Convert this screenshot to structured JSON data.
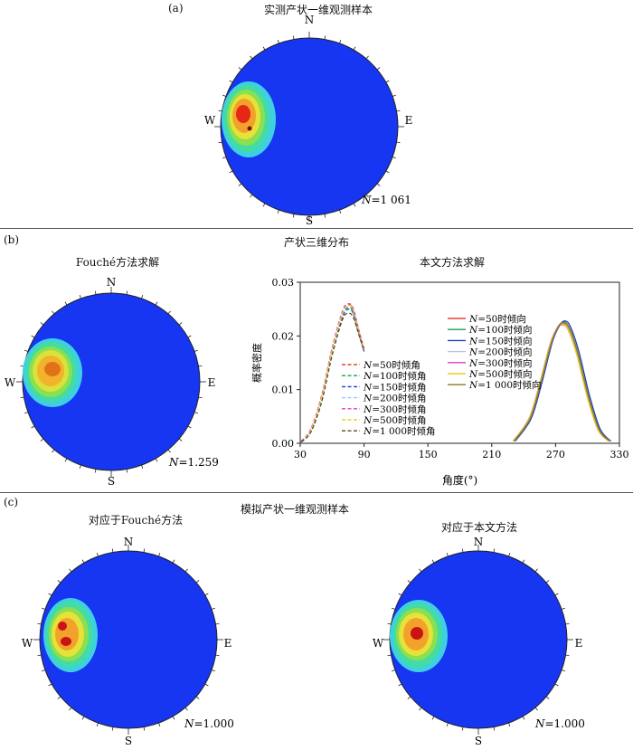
{
  "panel_a": {
    "tag": "(a)",
    "title": "实测产状一维观测样本",
    "net": {
      "north": "N",
      "south": "S",
      "west": "W",
      "east": "E",
      "n_symbol": "N",
      "n_value": "=1 061"
    }
  },
  "panel_b": {
    "tag": "(b)",
    "title": "产状三维分布",
    "left_title": "Fouché方法求解",
    "right_title": "本文方法求解",
    "net": {
      "north": "N",
      "south": "S",
      "west": "W",
      "east": "E",
      "n_symbol": "N",
      "n_value": "=1.259"
    }
  },
  "panel_c": {
    "tag": "(c)",
    "title": "模拟产状一维观测样本",
    "left_title": "对应于Fouché方法",
    "right_title": "对应于本文方法",
    "net_left": {
      "north": "N",
      "south": "S",
      "west": "W",
      "east": "E",
      "n_symbol": "N",
      "n_value": "=1.000"
    },
    "net_right": {
      "north": "N",
      "south": "S",
      "west": "W",
      "east": "E",
      "n_symbol": "N",
      "n_value": "=1.000"
    }
  },
  "chart_data": {
    "type": "line",
    "xlabel": "角度(°)",
    "ylabel": "概率密度",
    "xlim": [
      30,
      330
    ],
    "ylim": [
      0,
      0.03
    ],
    "xticks": [
      30,
      90,
      150,
      210,
      270,
      330
    ],
    "yticks": [
      0.0,
      0.01,
      0.02,
      0.03
    ],
    "ytick_labels": [
      "0.00",
      "0.01",
      "0.02",
      "0.03"
    ],
    "series": [
      {
        "name": "50时倾角",
        "n_value": "=50",
        "group": "dip",
        "dashed": true,
        "color": "#e8413a",
        "x": [
          31,
          40,
          50,
          60,
          70,
          76,
          80,
          85,
          90
        ],
        "y": [
          0.0003,
          0.0025,
          0.0085,
          0.0175,
          0.0245,
          0.0258,
          0.0248,
          0.021,
          0.0175
        ]
      },
      {
        "name": "100时倾角",
        "n_value": "=100",
        "group": "dip",
        "dashed": true,
        "color": "#16a34a",
        "x": [
          31,
          40,
          50,
          60,
          70,
          76,
          80,
          85,
          90
        ],
        "y": [
          0.0003,
          0.0023,
          0.008,
          0.017,
          0.024,
          0.0253,
          0.0243,
          0.0207,
          0.0173
        ]
      },
      {
        "name": "150时倾角",
        "n_value": "=150",
        "group": "dip",
        "dashed": true,
        "color": "#1d3fbf",
        "x": [
          31,
          40,
          50,
          60,
          70,
          76,
          80,
          85,
          90
        ],
        "y": [
          0.0002,
          0.0022,
          0.0078,
          0.0167,
          0.0237,
          0.025,
          0.0241,
          0.0205,
          0.0171
        ]
      },
      {
        "name": "200时倾角",
        "n_value": "=200",
        "group": "dip",
        "dashed": true,
        "color": "#8fcff0",
        "x": [
          31,
          40,
          50,
          60,
          70,
          76,
          80,
          85,
          90
        ],
        "y": [
          0.0003,
          0.0024,
          0.0082,
          0.0172,
          0.0242,
          0.0256,
          0.0246,
          0.0208,
          0.0174
        ]
      },
      {
        "name": "300时倾角",
        "n_value": "=300",
        "group": "dip",
        "dashed": true,
        "color": "#e03cc4",
        "x": [
          31,
          40,
          50,
          60,
          70,
          76,
          80,
          85,
          90
        ],
        "y": [
          0.0004,
          0.0027,
          0.0088,
          0.0178,
          0.0248,
          0.026,
          0.025,
          0.0212,
          0.0176
        ]
      },
      {
        "name": "500时倾角",
        "n_value": "=500",
        "group": "dip",
        "dashed": true,
        "color": "#e9d21b",
        "x": [
          31,
          40,
          50,
          60,
          70,
          76,
          80,
          85,
          90
        ],
        "y": [
          0.0003,
          0.0025,
          0.0084,
          0.0174,
          0.0244,
          0.0257,
          0.0247,
          0.0209,
          0.0175
        ]
      },
      {
        "name": "1 000时倾角",
        "n_value": "=1 000",
        "group": "dip",
        "dashed": true,
        "color": "#5a4a1f",
        "x": [
          31,
          40,
          50,
          60,
          70,
          76,
          80,
          85,
          90
        ],
        "y": [
          0.0003,
          0.0021,
          0.0076,
          0.0164,
          0.0232,
          0.0242,
          0.0234,
          0.0203,
          0.0172
        ]
      },
      {
        "name": "50时倾向",
        "n_value": "=50",
        "group": "dir",
        "dashed": false,
        "color": "#e8413a",
        "x": [
          230,
          245,
          255,
          265,
          272,
          277,
          282,
          290,
          300,
          310,
          320
        ],
        "y": [
          0.0004,
          0.0045,
          0.011,
          0.0185,
          0.0215,
          0.0221,
          0.0211,
          0.0165,
          0.0085,
          0.0025,
          0.0004
        ]
      },
      {
        "name": "100时倾向",
        "n_value": "=100",
        "group": "dir",
        "dashed": false,
        "color": "#16a34a",
        "x": [
          231,
          246,
          256,
          266,
          273,
          278,
          283,
          291,
          301,
          311,
          321
        ],
        "y": [
          0.0004,
          0.0047,
          0.0113,
          0.0188,
          0.0219,
          0.0226,
          0.0215,
          0.0168,
          0.0087,
          0.0026,
          0.0004
        ]
      },
      {
        "name": "150时倾向",
        "n_value": "=150",
        "group": "dir",
        "dashed": false,
        "color": "#1d3fbf",
        "x": [
          232,
          247,
          257,
          267,
          274,
          279,
          284,
          292,
          302,
          312,
          322
        ],
        "y": [
          0.0004,
          0.0046,
          0.0112,
          0.0189,
          0.022,
          0.0228,
          0.0217,
          0.017,
          0.0088,
          0.0026,
          0.0004
        ]
      },
      {
        "name": "200时倾向",
        "n_value": "=200",
        "group": "dir",
        "dashed": false,
        "color": "#b9c4ea",
        "x": [
          231,
          246,
          256,
          266,
          273,
          278,
          283,
          291,
          301,
          311,
          321
        ],
        "y": [
          0.0004,
          0.0046,
          0.0112,
          0.0187,
          0.0218,
          0.0224,
          0.0214,
          0.0167,
          0.0086,
          0.0025,
          0.0004
        ]
      },
      {
        "name": "300时倾向",
        "n_value": "=300",
        "group": "dir",
        "dashed": false,
        "color": "#e03cc4",
        "x": [
          230,
          245,
          255,
          265,
          272,
          277,
          282,
          290,
          300,
          310,
          320
        ],
        "y": [
          0.0004,
          0.0046,
          0.0111,
          0.0186,
          0.0217,
          0.0223,
          0.0213,
          0.0166,
          0.0086,
          0.0025,
          0.0004
        ]
      },
      {
        "name": "500时倾向",
        "n_value": "=500",
        "group": "dir",
        "dashed": false,
        "color": "#e9d21b",
        "x": [
          230,
          245,
          255,
          265,
          272,
          277,
          282,
          290,
          300,
          310,
          320
        ],
        "y": [
          0.0004,
          0.0045,
          0.011,
          0.0185,
          0.0216,
          0.0222,
          0.0212,
          0.0165,
          0.0085,
          0.0025,
          0.0004
        ]
      },
      {
        "name": "1 000时倾向",
        "n_value": "=1 000",
        "group": "dir",
        "dashed": false,
        "color": "#8a7a2a",
        "x": [
          231,
          246,
          256,
          266,
          273,
          278,
          283,
          291,
          301,
          311,
          321
        ],
        "y": [
          0.0004,
          0.0046,
          0.0112,
          0.0187,
          0.0218,
          0.0225,
          0.0214,
          0.0167,
          0.0086,
          0.0025,
          0.0004
        ]
      }
    ]
  }
}
